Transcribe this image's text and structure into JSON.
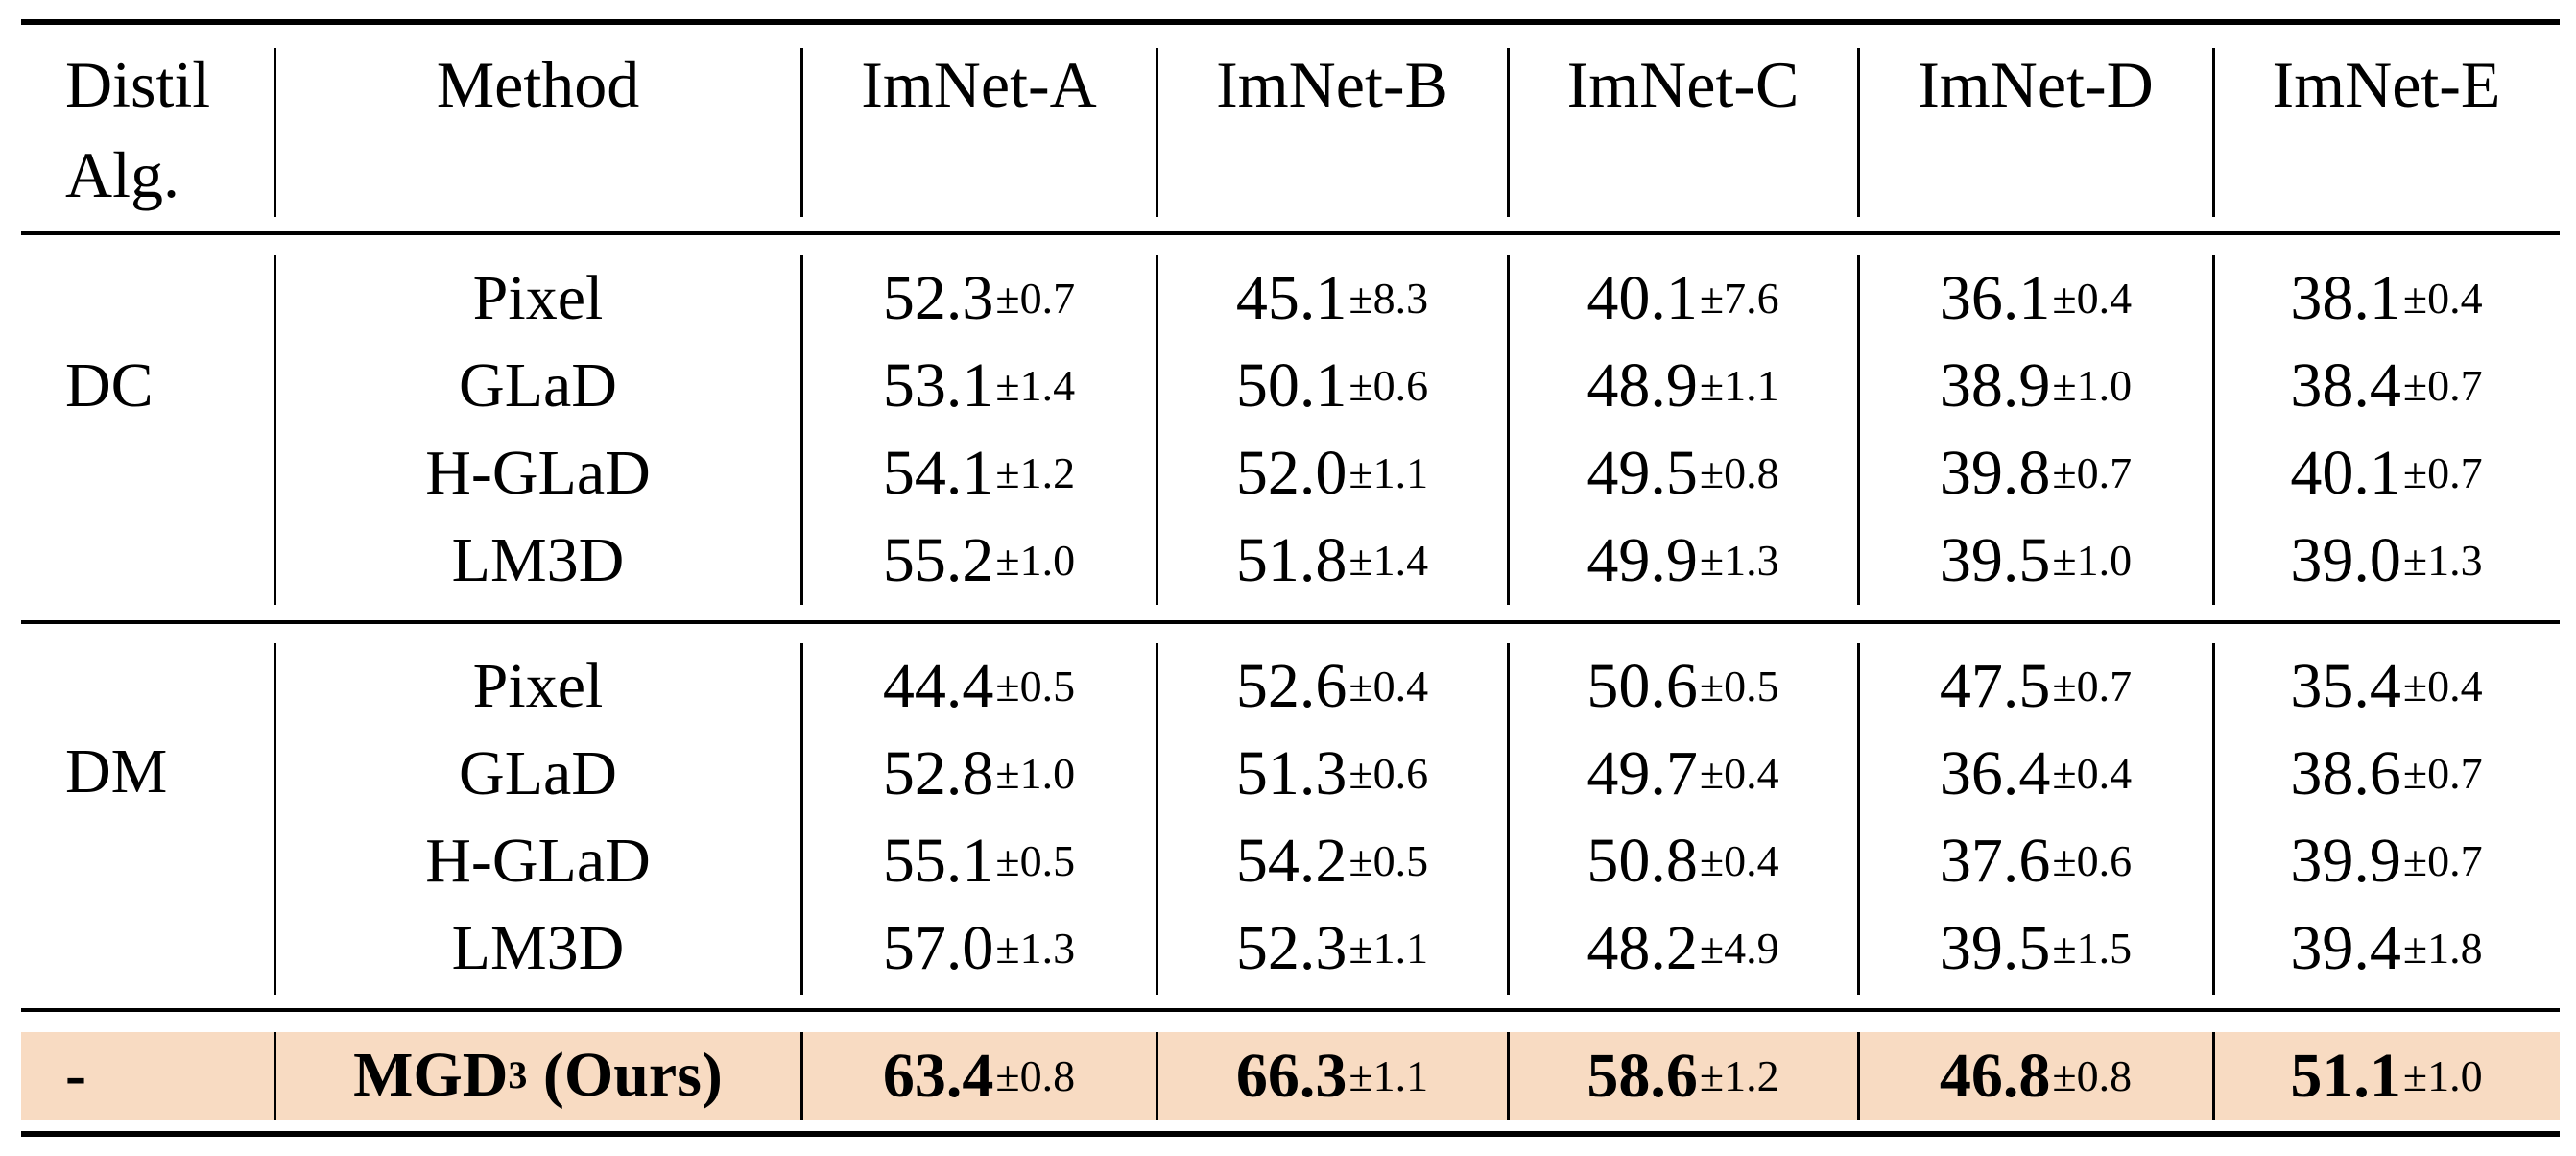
{
  "table": {
    "header": {
      "distil_alg_line1": "Distil",
      "distil_alg_line2": "Alg.",
      "method": "Method",
      "columns": [
        "ImNet-A",
        "ImNet-B",
        "ImNet-C",
        "ImNet-D",
        "ImNet-E"
      ]
    },
    "groups": [
      {
        "algorithm": "DC",
        "rows": [
          {
            "method": "Pixel",
            "values": [
              {
                "mean": "52.3",
                "std": "±0.7"
              },
              {
                "mean": "45.1",
                "std": "±8.3"
              },
              {
                "mean": "40.1",
                "std": "±7.6"
              },
              {
                "mean": "36.1",
                "std": "±0.4"
              },
              {
                "mean": "38.1",
                "std": "±0.4"
              }
            ]
          },
          {
            "method": "GLaD",
            "values": [
              {
                "mean": "53.1",
                "std": "±1.4"
              },
              {
                "mean": "50.1",
                "std": "±0.6"
              },
              {
                "mean": "48.9",
                "std": "±1.1"
              },
              {
                "mean": "38.9",
                "std": "±1.0"
              },
              {
                "mean": "38.4",
                "std": "±0.7"
              }
            ]
          },
          {
            "method": "H-GLaD",
            "values": [
              {
                "mean": "54.1",
                "std": "±1.2"
              },
              {
                "mean": "52.0",
                "std": "±1.1"
              },
              {
                "mean": "49.5",
                "std": "±0.8"
              },
              {
                "mean": "39.8",
                "std": "±0.7"
              },
              {
                "mean": "40.1",
                "std": "±0.7"
              }
            ]
          },
          {
            "method": "LM3D",
            "values": [
              {
                "mean": "55.2",
                "std": "±1.0"
              },
              {
                "mean": "51.8",
                "std": "±1.4"
              },
              {
                "mean": "49.9",
                "std": "±1.3"
              },
              {
                "mean": "39.5",
                "std": "±1.0"
              },
              {
                "mean": "39.0",
                "std": "±1.3"
              }
            ]
          }
        ]
      },
      {
        "algorithm": "DM",
        "rows": [
          {
            "method": "Pixel",
            "values": [
              {
                "mean": "44.4",
                "std": "±0.5"
              },
              {
                "mean": "52.6",
                "std": "±0.4"
              },
              {
                "mean": "50.6",
                "std": "±0.5"
              },
              {
                "mean": "47.5",
                "std": "±0.7"
              },
              {
                "mean": "35.4",
                "std": "±0.4"
              }
            ]
          },
          {
            "method": "GLaD",
            "values": [
              {
                "mean": "52.8",
                "std": "±1.0"
              },
              {
                "mean": "51.3",
                "std": "±0.6"
              },
              {
                "mean": "49.7",
                "std": "±0.4"
              },
              {
                "mean": "36.4",
                "std": "±0.4"
              },
              {
                "mean": "38.6",
                "std": "±0.7"
              }
            ]
          },
          {
            "method": "H-GLaD",
            "values": [
              {
                "mean": "55.1",
                "std": "±0.5"
              },
              {
                "mean": "54.2",
                "std": "±0.5"
              },
              {
                "mean": "50.8",
                "std": "±0.4"
              },
              {
                "mean": "37.6",
                "std": "±0.6"
              },
              {
                "mean": "39.9",
                "std": "±0.7"
              }
            ]
          },
          {
            "method": "LM3D",
            "values": [
              {
                "mean": "57.0",
                "std": "±1.3"
              },
              {
                "mean": "52.3",
                "std": "±1.1"
              },
              {
                "mean": "48.2",
                "std": "±4.9"
              },
              {
                "mean": "39.5",
                "std": "±1.5"
              },
              {
                "mean": "39.4",
                "std": "±1.8"
              }
            ]
          }
        ]
      }
    ],
    "ours": {
      "algorithm": "-",
      "method_base": "MGD",
      "method_sup": "3",
      "method_suffix": " (Ours)",
      "values": [
        {
          "mean": "63.4",
          "std": "±0.8"
        },
        {
          "mean": "66.3",
          "std": "±1.1"
        },
        {
          "mean": "58.6",
          "std": "±1.2"
        },
        {
          "mean": "46.8",
          "std": "±0.8"
        },
        {
          "mean": "51.1",
          "std": "±1.0"
        }
      ],
      "highlight_color": "#f8dbc2"
    }
  }
}
